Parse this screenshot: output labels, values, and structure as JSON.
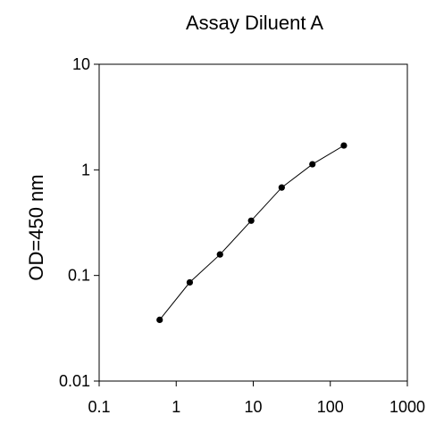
{
  "chart_data": {
    "type": "line",
    "title": "Assay Diluent A",
    "xlabel": "",
    "ylabel": "OD=450 nm",
    "x_scale": "log",
    "y_scale": "log",
    "xlim": [
      0.1,
      1000
    ],
    "ylim": [
      0.01,
      10
    ],
    "x_ticks": [
      "0.1",
      "1",
      "10",
      "100",
      "1000"
    ],
    "y_ticks": [
      "0.01",
      "0.1",
      "1",
      "10"
    ],
    "grid": false,
    "legend": "none",
    "series": [
      {
        "x": [
          0.61,
          1.5,
          3.7,
          9.4,
          23.4,
          58.6,
          150
        ],
        "y": [
          0.038,
          0.086,
          0.158,
          0.33,
          0.68,
          1.13,
          1.7
        ]
      }
    ],
    "colors": {
      "line": "#000000",
      "marker": "#000000",
      "frame": "#000000"
    }
  }
}
